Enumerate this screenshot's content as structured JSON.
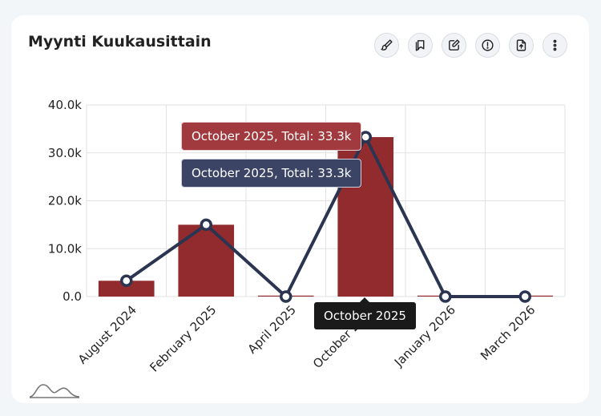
{
  "card": {
    "title": "Myynti Kuukausittain"
  },
  "toolbar": {
    "buttons": [
      {
        "icon": "brush-icon"
      },
      {
        "icon": "copy-icon"
      },
      {
        "icon": "edit-icon"
      },
      {
        "icon": "info-icon"
      },
      {
        "icon": "export-icon"
      },
      {
        "icon": "more-vertical-icon"
      }
    ]
  },
  "colors": {
    "bar": "#922b2e",
    "line": "#2b3450",
    "grid": "#e2e2e2"
  },
  "chart_data": {
    "type": "bar",
    "categories": [
      "August 2024",
      "February 2025",
      "April 2025",
      "October 2025",
      "January 2026",
      "March 2026"
    ],
    "series": [
      {
        "type": "bar",
        "values": [
          3300,
          15000,
          0,
          33300,
          0,
          0
        ]
      },
      {
        "type": "line",
        "values": [
          3300,
          15000,
          0,
          33300,
          0,
          0
        ]
      }
    ],
    "ylim": [
      0,
      40000
    ],
    "yticks": [
      "0.0",
      "10.0k",
      "20.0k",
      "30.0k",
      "40.0k"
    ],
    "grid": true
  },
  "tooltips": {
    "bar": "October 2025, Total: 33.3k",
    "line": "October 2025, Total: 33.3k",
    "axis": "October 2025"
  }
}
